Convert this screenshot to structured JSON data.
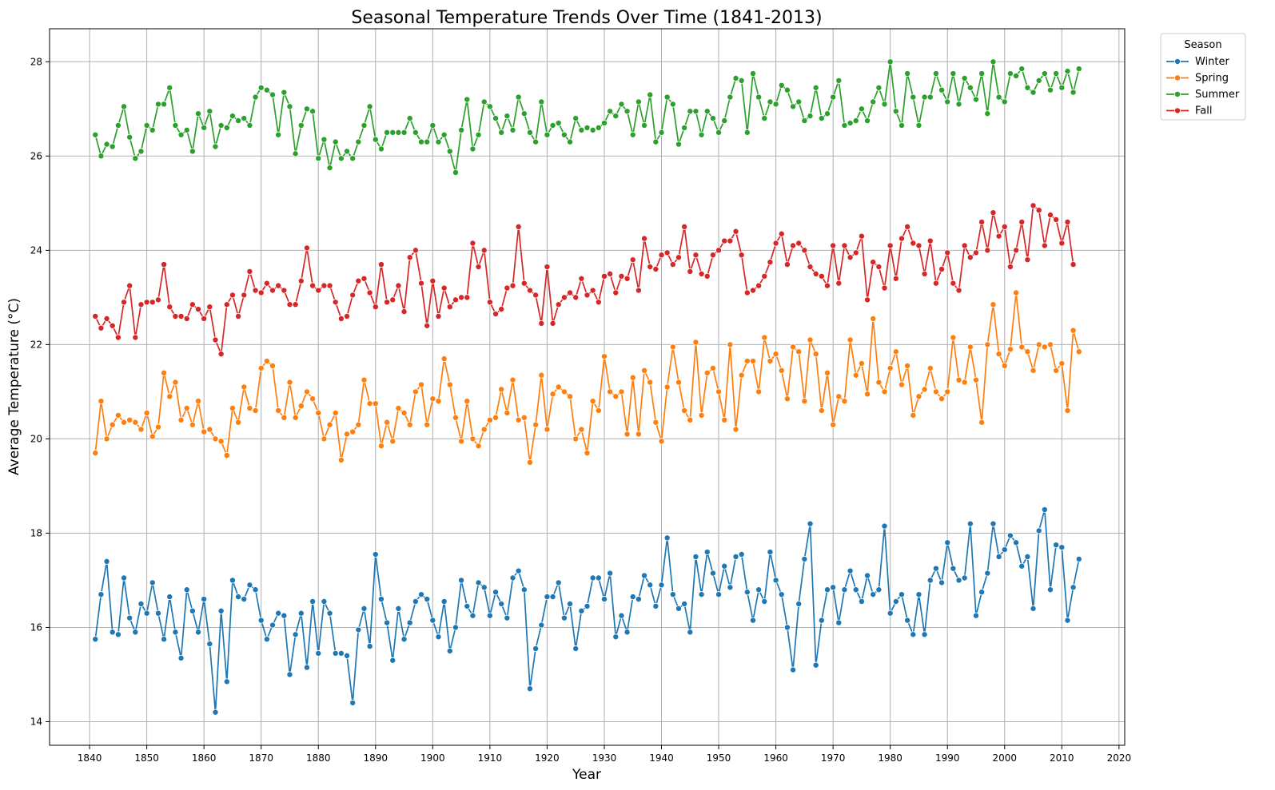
{
  "chart_data": {
    "type": "line",
    "title": "Seasonal Temperature Trends Over Time (1841-2013)",
    "xlabel": "Year",
    "ylabel": "Average Temperature (°C)",
    "xlim": [
      1833,
      2021
    ],
    "ylim": [
      13.5,
      28.7
    ],
    "xticks": [
      1840,
      1850,
      1860,
      1870,
      1880,
      1890,
      1900,
      1910,
      1920,
      1930,
      1940,
      1950,
      1960,
      1970,
      1980,
      1990,
      2000,
      2010,
      2020
    ],
    "yticks": [
      14,
      16,
      18,
      20,
      22,
      24,
      26,
      28
    ],
    "grid": true,
    "legend": {
      "title": "Season",
      "placement": "outside-top-right"
    },
    "x_start": 1841,
    "series": [
      {
        "name": "Winter",
        "color": "#1f77b4",
        "values": [
          15.75,
          16.7,
          17.4,
          15.9,
          15.85,
          17.05,
          16.2,
          15.9,
          16.5,
          16.3,
          16.95,
          16.3,
          15.75,
          16.65,
          15.9,
          15.35,
          16.8,
          16.35,
          15.9,
          16.6,
          15.65,
          14.2,
          16.35,
          14.85,
          17.0,
          16.65,
          16.6,
          16.9,
          16.8,
          16.15,
          15.75,
          16.05,
          16.3,
          16.25,
          15.0,
          15.85,
          16.3,
          15.15,
          16.55,
          15.45,
          16.55,
          16.3,
          15.45,
          15.45,
          15.4,
          14.4,
          15.95,
          16.4,
          15.6,
          17.55,
          16.6,
          16.1,
          15.3,
          16.4,
          15.75,
          16.1,
          16.55,
          16.7,
          16.6,
          16.15,
          15.8,
          16.55,
          15.5,
          16.0,
          17.0,
          16.45,
          16.25,
          16.95,
          16.85,
          16.25,
          16.75,
          16.5,
          16.2,
          17.05,
          17.2,
          16.8,
          14.7,
          15.55,
          16.05,
          16.65,
          16.65,
          16.95,
          16.2,
          16.5,
          15.55,
          16.35,
          16.45,
          17.05,
          17.05,
          16.6,
          17.15,
          15.8,
          16.25,
          15.9,
          16.65,
          16.6,
          17.1,
          16.9,
          16.45,
          16.9,
          17.9,
          16.7,
          16.4,
          16.5,
          15.9,
          17.5,
          16.7,
          17.6,
          17.15,
          16.7,
          17.3,
          16.85,
          17.5,
          17.55,
          16.75,
          16.15,
          16.8,
          16.55,
          17.6,
          17.0,
          16.7,
          16.0,
          15.1,
          16.5,
          17.45,
          18.2,
          15.2,
          16.15,
          16.8,
          16.85,
          16.1,
          16.8,
          17.2,
          16.8,
          16.55,
          17.1,
          16.7,
          16.8,
          18.15,
          16.3,
          16.55,
          16.7,
          16.15,
          15.85,
          16.7,
          15.85,
          17.0,
          17.25,
          16.95,
          17.8,
          17.25,
          17.0,
          17.05,
          18.2,
          16.25,
          16.75,
          17.15,
          18.2,
          17.5,
          17.65,
          17.95,
          17.8,
          17.3,
          17.5,
          16.4,
          18.05,
          18.5,
          16.8,
          17.75,
          17.7,
          16.15,
          16.85,
          17.45
        ]
      },
      {
        "name": "Spring",
        "color": "#ff7f0e",
        "values": [
          19.7,
          20.8,
          20.0,
          20.3,
          20.5,
          20.35,
          20.4,
          20.35,
          20.2,
          20.55,
          20.05,
          20.25,
          21.4,
          20.9,
          21.2,
          20.4,
          20.65,
          20.3,
          20.8,
          20.15,
          20.2,
          20.0,
          19.95,
          19.65,
          20.65,
          20.35,
          21.1,
          20.65,
          20.6,
          21.5,
          21.65,
          21.55,
          20.6,
          20.45,
          21.2,
          20.45,
          20.7,
          21.0,
          20.85,
          20.55,
          20.0,
          20.3,
          20.55,
          19.55,
          20.1,
          20.15,
          20.3,
          21.25,
          20.75,
          20.75,
          19.85,
          20.35,
          19.95,
          20.65,
          20.55,
          20.3,
          21.0,
          21.15,
          20.3,
          20.85,
          20.8,
          21.7,
          21.15,
          20.45,
          19.95,
          20.8,
          20.0,
          19.85,
          20.2,
          20.4,
          20.45,
          21.05,
          20.55,
          21.25,
          20.4,
          20.45,
          19.5,
          20.3,
          21.35,
          20.2,
          20.95,
          21.1,
          21.0,
          20.9,
          20.0,
          20.2,
          19.7,
          20.8,
          20.6,
          21.75,
          21.0,
          20.9,
          21.0,
          20.1,
          21.3,
          20.1,
          21.45,
          21.2,
          20.35,
          19.95,
          21.1,
          21.95,
          21.2,
          20.6,
          20.4,
          22.05,
          20.5,
          21.4,
          21.5,
          21.0,
          20.4,
          22.0,
          20.2,
          21.35,
          21.65,
          21.65,
          21.0,
          22.15,
          21.65,
          21.8,
          21.45,
          20.85,
          21.95,
          21.85,
          20.8,
          22.1,
          21.8,
          20.6,
          21.4,
          20.3,
          20.9,
          20.8,
          22.1,
          21.35,
          21.6,
          20.95,
          22.55,
          21.2,
          21.0,
          21.5,
          21.85,
          21.15,
          21.55,
          20.5,
          20.9,
          21.05,
          21.5,
          21.0,
          20.85,
          21.0,
          22.15,
          21.25,
          21.2,
          21.95,
          21.25,
          20.35,
          22.0,
          22.85,
          21.8,
          21.55,
          21.9,
          23.1,
          21.95,
          21.85,
          21.45,
          22.0,
          21.95,
          22.0,
          21.45,
          21.6,
          20.6,
          22.3,
          21.85
        ]
      },
      {
        "name": "Summer",
        "color": "#2ca02c",
        "values": [
          26.45,
          26.0,
          26.25,
          26.2,
          26.65,
          27.05,
          26.4,
          25.95,
          26.1,
          26.65,
          26.55,
          27.1,
          27.1,
          27.45,
          26.65,
          26.45,
          26.55,
          26.1,
          26.9,
          26.6,
          26.95,
          26.2,
          26.65,
          26.6,
          26.85,
          26.75,
          26.8,
          26.65,
          27.25,
          27.45,
          27.4,
          27.3,
          26.45,
          27.35,
          27.05,
          26.05,
          26.65,
          27.0,
          26.95,
          25.95,
          26.35,
          25.75,
          26.3,
          25.95,
          26.1,
          25.95,
          26.3,
          26.65,
          27.05,
          26.35,
          26.15,
          26.5,
          26.5,
          26.5,
          26.5,
          26.8,
          26.5,
          26.3,
          26.3,
          26.65,
          26.3,
          26.45,
          26.1,
          25.65,
          26.55,
          27.2,
          26.15,
          26.45,
          27.15,
          27.05,
          26.8,
          26.5,
          26.85,
          26.55,
          27.25,
          26.9,
          26.5,
          26.3,
          27.15,
          26.45,
          26.65,
          26.7,
          26.45,
          26.3,
          26.8,
          26.55,
          26.6,
          26.55,
          26.6,
          26.7,
          26.95,
          26.85,
          27.1,
          26.95,
          26.45,
          27.15,
          26.65,
          27.3,
          26.3,
          26.5,
          27.25,
          27.1,
          26.25,
          26.6,
          26.95,
          26.95,
          26.45,
          26.95,
          26.8,
          26.5,
          26.75,
          27.25,
          27.65,
          27.6,
          26.5,
          27.75,
          27.25,
          26.8,
          27.15,
          27.1,
          27.5,
          27.4,
          27.05,
          27.15,
          26.75,
          26.85,
          27.45,
          26.8,
          26.9,
          27.25,
          27.6,
          26.65,
          26.7,
          26.75,
          27.0,
          26.75,
          27.15,
          27.45,
          27.1,
          28.0,
          26.95,
          26.65,
          27.75,
          27.25,
          26.65,
          27.25,
          27.25,
          27.75,
          27.4,
          27.15,
          27.75,
          27.1,
          27.65,
          27.45,
          27.2,
          27.75,
          26.9,
          28.0,
          27.25,
          27.15,
          27.75,
          27.7,
          27.85,
          27.45,
          27.35,
          27.6,
          27.75,
          27.4,
          27.75,
          27.45,
          27.8,
          27.35,
          27.85
        ]
      },
      {
        "name": "Fall",
        "color": "#d62728",
        "values": [
          22.6,
          22.35,
          22.55,
          22.4,
          22.15,
          22.9,
          23.25,
          22.15,
          22.85,
          22.9,
          22.9,
          22.95,
          23.7,
          22.8,
          22.6,
          22.6,
          22.55,
          22.85,
          22.75,
          22.55,
          22.8,
          22.1,
          21.8,
          22.85,
          23.05,
          22.6,
          23.05,
          23.55,
          23.15,
          23.1,
          23.3,
          23.15,
          23.25,
          23.15,
          22.85,
          22.85,
          23.35,
          24.05,
          23.25,
          23.15,
          23.25,
          23.25,
          22.9,
          22.55,
          22.6,
          23.05,
          23.35,
          23.4,
          23.1,
          22.8,
          23.7,
          22.9,
          22.95,
          23.25,
          22.7,
          23.85,
          24.0,
          23.3,
          22.4,
          23.35,
          22.6,
          23.2,
          22.8,
          22.95,
          23.0,
          23.0,
          24.15,
          23.65,
          24.0,
          22.9,
          22.65,
          22.75,
          23.2,
          23.25,
          24.5,
          23.3,
          23.15,
          23.05,
          22.45,
          23.65,
          22.45,
          22.85,
          23.0,
          23.1,
          23.0,
          23.4,
          23.05,
          23.15,
          22.9,
          23.45,
          23.5,
          23.1,
          23.45,
          23.4,
          23.8,
          23.15,
          24.25,
          23.65,
          23.6,
          23.9,
          23.95,
          23.7,
          23.85,
          24.5,
          23.55,
          23.9,
          23.5,
          23.45,
          23.9,
          24.0,
          24.2,
          24.2,
          24.4,
          23.9,
          23.1,
          23.15,
          23.25,
          23.45,
          23.75,
          24.15,
          24.35,
          23.7,
          24.1,
          24.15,
          24.0,
          23.65,
          23.5,
          23.45,
          23.25,
          24.1,
          23.3,
          24.1,
          23.85,
          23.95,
          24.3,
          22.95,
          23.75,
          23.65,
          23.2,
          24.1,
          23.4,
          24.25,
          24.5,
          24.15,
          24.1,
          23.5,
          24.2,
          23.3,
          23.6,
          23.95,
          23.3,
          23.15,
          24.1,
          23.85,
          23.95,
          24.6,
          24.0,
          24.8,
          24.3,
          24.5,
          23.65,
          24.0,
          24.6,
          23.8,
          24.95,
          24.85,
          24.1,
          24.75,
          24.65,
          24.15,
          24.6,
          23.7
        ]
      }
    ]
  }
}
